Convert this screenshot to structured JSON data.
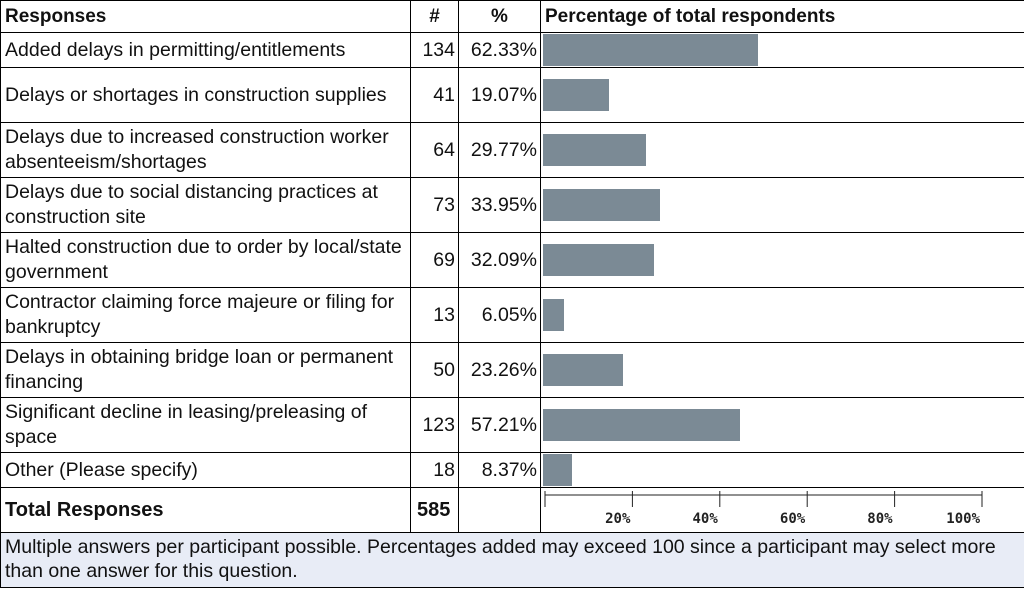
{
  "headers": {
    "responses": "Responses",
    "count": "#",
    "percent": "%",
    "chart": "Percentage of total respondents"
  },
  "rows": [
    {
      "label": "Added delays in permitting/entitlements",
      "count": "134",
      "percent": "62.33%"
    },
    {
      "label": "Delays or shortages in construction supplies",
      "count": "41",
      "percent": "19.07%"
    },
    {
      "label": "Delays due to increased construction worker absenteeism/shortages",
      "count": "64",
      "percent": "29.77%"
    },
    {
      "label": "Delays due to social distancing practices at construction site",
      "count": "73",
      "percent": "33.95%"
    },
    {
      "label": "Halted construction due to order by local/state government",
      "count": "69",
      "percent": "32.09%"
    },
    {
      "label": "Contractor claiming force majeure or filing for bankruptcy",
      "count": "13",
      "percent": "6.05%"
    },
    {
      "label": "Delays in obtaining bridge loan or permanent financing",
      "count": "50",
      "percent": "23.26%"
    },
    {
      "label": "Significant decline in leasing/preleasing of space",
      "count": "123",
      "percent": "57.21%"
    },
    {
      "label": "Other (Please specify)",
      "count": "18",
      "percent": "8.37%"
    }
  ],
  "total": {
    "label": "Total Responses",
    "count": "585"
  },
  "footer": "Multiple answers per participant possible. Percentages added may exceed 100 since a participant may select more than one answer for this question.",
  "colors": {
    "bar": "#7b8a95",
    "footer_bg": "#e8ecf6"
  },
  "chart_data": {
    "type": "bar",
    "orientation": "horizontal",
    "title": "Percentage of total respondents",
    "categories": [
      "Added delays in permitting/entitlements",
      "Delays or shortages in construction supplies",
      "Delays due to increased construction worker absenteeism/shortages",
      "Delays due to social distancing practices at construction site",
      "Halted construction due to order by local/state government",
      "Contractor claiming force majeure or filing for bankruptcy",
      "Delays in obtaining bridge loan or permanent financing",
      "Significant decline in leasing/preleasing of space",
      "Other (Please specify)"
    ],
    "values": [
      62.33,
      19.07,
      29.77,
      33.95,
      32.09,
      6.05,
      23.26,
      57.21,
      8.37
    ],
    "xlim": [
      0,
      100
    ],
    "ticks": [
      "20%",
      "40%",
      "60%",
      "80%",
      "100%"
    ],
    "tick_values": [
      20,
      40,
      60,
      80,
      100
    ],
    "grid": false,
    "legend": "none"
  }
}
